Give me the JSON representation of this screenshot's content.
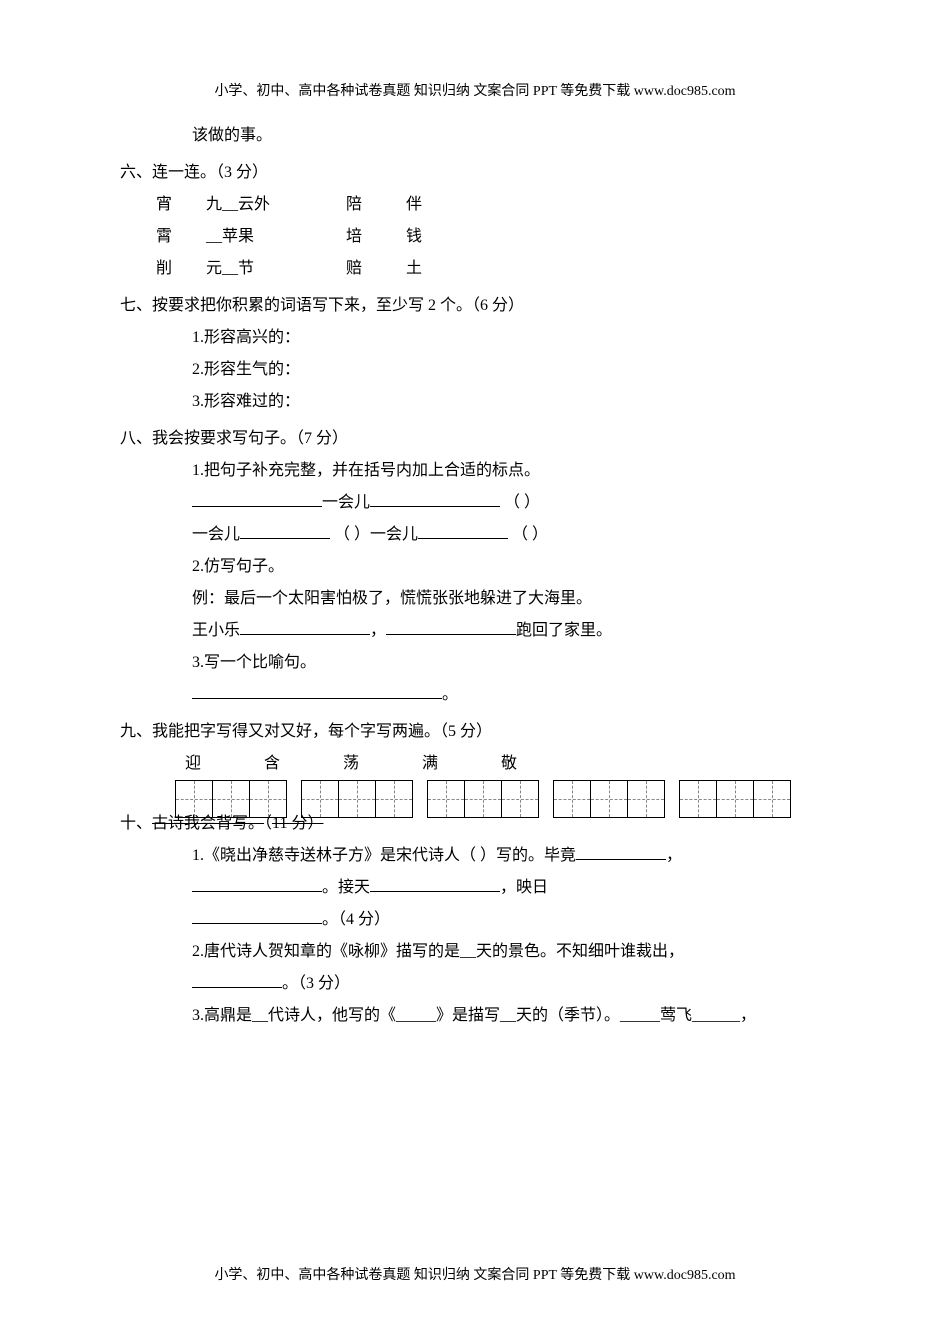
{
  "header": "小学、初中、高中各种试卷真题 知识归纳 文案合同 PPT 等免费下载   www.doc985.com",
  "footer": "小学、初中、高中各种试卷真题 知识归纳 文案合同 PPT 等免费下载   www.doc985.com",
  "lead_line": "该做的事。",
  "section6": {
    "title": "六、连一连。（3 分）",
    "rows": [
      {
        "c1": "宵",
        "c2": "九__云外",
        "c3": "陪",
        "c4": "伴"
      },
      {
        "c1": "霄",
        "c2": "__苹果",
        "c3": "培",
        "c4": "钱"
      },
      {
        "c1": "削",
        "c2": "元__节",
        "c3": "赔",
        "c4": "土"
      }
    ]
  },
  "section7": {
    "title": "七、按要求把你积累的词语写下来，至少写 2 个。（6 分）",
    "items": [
      "1.形容高兴的：",
      "2.形容生气的：",
      "3.形容难过的："
    ]
  },
  "section8": {
    "title": "八、我会按要求写句子。（7 分）",
    "q1_title": "1.把句子补充完整，并在括号内加上合适的标点。",
    "q1_line1_a": "一会儿",
    "q1_line2_a": "一会儿",
    "q1_line2_b": "（  ）一会儿",
    "q1_paren": "（  ）",
    "q2_title": "2.仿写句子。",
    "q2_example": "例：最后一个太阳害怕极了，慌慌张张地躲进了大海里。",
    "q2_subject": "王小乐",
    "q2_tail": "跑回了家里。",
    "q3_title": "3.写一个比喻句。",
    "q3_end": "。"
  },
  "section9": {
    "title": "九、我能把字写得又对又好，每个字写两遍。（5 分）",
    "chars": [
      "迎",
      "含",
      "荡",
      "满",
      "敬"
    ]
  },
  "section10": {
    "title_a": "十、",
    "title_strike": "古诗我会背写。",
    "title_b": "（",
    "title_strike2": "11 分）",
    "q1_a": "1.《晓出净慈寺送林子方》是宋代诗人（     ）写的。毕竟",
    "q1_comma": "，",
    "q1_b": "。接天",
    "q1_c": "，映日",
    "q1_d": "。（4 分）",
    "q2_a": "2.唐代诗人贺知章的《咏柳》描写的是__天的景色。不知细叶谁裁出，",
    "q2_b": "。（3 分）",
    "q3_a": "3.高鼎是__代诗人，他写的《_____》是描写__天的（季节）。_____莺飞______，"
  }
}
